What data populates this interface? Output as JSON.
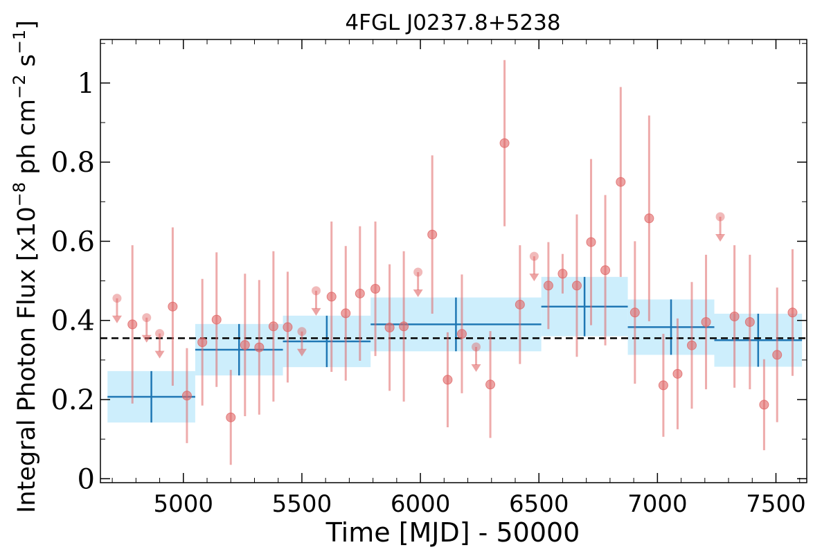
{
  "chart_data": {
    "type": "scatter",
    "title": "4FGL J0237.8+5238",
    "xlabel": "Time [MJD] - 50000",
    "ylabel": "Integral Photon Flux [x10",
    "ylabel_exp1": "−8",
    "ylabel_mid": " ph cm",
    "ylabel_exp2": "−2",
    "ylabel_mid2": " s",
    "ylabel_exp3": "−1",
    "ylabel_end": "]",
    "xlim": [
      4650,
      7630
    ],
    "ylim": [
      -0.01,
      1.11
    ],
    "x_ticks": [
      5000,
      5500,
      6000,
      6500,
      7000,
      7500
    ],
    "y_ticks": [
      0,
      0.2,
      0.4,
      0.6,
      0.8,
      1
    ],
    "x_tick_labels": [
      "5000",
      "5500",
      "6000",
      "6500",
      "7000",
      "7500"
    ],
    "y_tick_labels": [
      "0",
      "0.2",
      "0.4",
      "0.6",
      "0.8",
      "1"
    ],
    "average_flux": 0.355,
    "colors": {
      "points": "#e06666",
      "bins": "#1f77b4",
      "band": "#cdeefc",
      "average": "#000000"
    },
    "series": [
      {
        "kind": "detections",
        "points": [
          {
            "x": 4785,
            "y": 0.39,
            "err": 0.2
          },
          {
            "x": 4955,
            "y": 0.435,
            "err": 0.2
          },
          {
            "x": 5015,
            "y": 0.21,
            "err": 0.12
          },
          {
            "x": 5080,
            "y": 0.345,
            "err": 0.16
          },
          {
            "x": 5140,
            "y": 0.402,
            "err": 0.17
          },
          {
            "x": 5200,
            "y": 0.155,
            "err": 0.12
          },
          {
            "x": 5260,
            "y": 0.338,
            "err": 0.18
          },
          {
            "x": 5320,
            "y": 0.332,
            "err": 0.17
          },
          {
            "x": 5380,
            "y": 0.385,
            "err": 0.19
          },
          {
            "x": 5440,
            "y": 0.383,
            "err": 0.14
          },
          {
            "x": 5625,
            "y": 0.46,
            "err": 0.19
          },
          {
            "x": 5685,
            "y": 0.418,
            "err": 0.17
          },
          {
            "x": 5745,
            "y": 0.468,
            "err": 0.17
          },
          {
            "x": 5810,
            "y": 0.48,
            "err": 0.17
          },
          {
            "x": 5870,
            "y": 0.382,
            "err": 0.16
          },
          {
            "x": 5930,
            "y": 0.385,
            "err": 0.19
          },
          {
            "x": 6050,
            "y": 0.617,
            "err": 0.2
          },
          {
            "x": 6115,
            "y": 0.25,
            "err": 0.12
          },
          {
            "x": 6175,
            "y": 0.366,
            "err": 0.15
          },
          {
            "x": 6295,
            "y": 0.238,
            "err": 0.135
          },
          {
            "x": 6355,
            "y": 0.848,
            "err": 0.21
          },
          {
            "x": 6420,
            "y": 0.44,
            "err": 0.15
          },
          {
            "x": 6540,
            "y": 0.488,
            "err": 0.11
          },
          {
            "x": 6600,
            "y": 0.518,
            "err": 0.05
          },
          {
            "x": 6660,
            "y": 0.488,
            "err": 0.18
          },
          {
            "x": 6720,
            "y": 0.598,
            "err": 0.21
          },
          {
            "x": 6780,
            "y": 0.527,
            "err": 0.19
          },
          {
            "x": 6845,
            "y": 0.75,
            "err": 0.24
          },
          {
            "x": 6905,
            "y": 0.42,
            "err": 0.18
          },
          {
            "x": 6965,
            "y": 0.658,
            "err": 0.26
          },
          {
            "x": 7025,
            "y": 0.236,
            "err": 0.13
          },
          {
            "x": 7085,
            "y": 0.265,
            "err": 0.14
          },
          {
            "x": 7145,
            "y": 0.337,
            "err": 0.16
          },
          {
            "x": 7205,
            "y": 0.396,
            "err": 0.17
          },
          {
            "x": 7325,
            "y": 0.41,
            "err": 0.18
          },
          {
            "x": 7390,
            "y": 0.396,
            "err": 0.17
          },
          {
            "x": 7450,
            "y": 0.187,
            "err": 0.115
          },
          {
            "x": 7505,
            "y": 0.313,
            "err": 0.17
          },
          {
            "x": 7570,
            "y": 0.42,
            "err": 0.16
          }
        ]
      },
      {
        "kind": "upper_limits",
        "points": [
          {
            "x": 4720,
            "y": 0.456
          },
          {
            "x": 4845,
            "y": 0.407
          },
          {
            "x": 4900,
            "y": 0.367
          },
          {
            "x": 5500,
            "y": 0.372
          },
          {
            "x": 5560,
            "y": 0.475
          },
          {
            "x": 5990,
            "y": 0.522
          },
          {
            "x": 6235,
            "y": 0.333
          },
          {
            "x": 6480,
            "y": 0.562
          },
          {
            "x": 7265,
            "y": 0.662
          }
        ]
      },
      {
        "kind": "bins",
        "bins": [
          {
            "x0": 4680,
            "x1": 5050,
            "y": 0.207,
            "err": 0.065
          },
          {
            "x0": 5050,
            "x1": 5420,
            "y": 0.326,
            "err": 0.065
          },
          {
            "x0": 5420,
            "x1": 5790,
            "y": 0.347,
            "err": 0.065
          },
          {
            "x0": 5790,
            "x1": 6510,
            "y": 0.39,
            "err": 0.068
          },
          {
            "x0": 6510,
            "x1": 6875,
            "y": 0.435,
            "err": 0.075
          },
          {
            "x0": 6875,
            "x1": 7240,
            "y": 0.383,
            "err": 0.07
          },
          {
            "x0": 7240,
            "x1": 7610,
            "y": 0.35,
            "err": 0.067
          }
        ]
      }
    ],
    "grid": false,
    "legend": "none"
  }
}
